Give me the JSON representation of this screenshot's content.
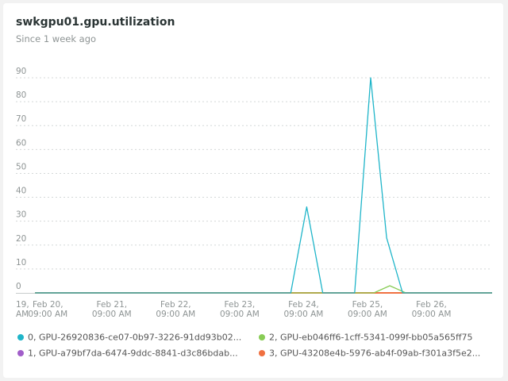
{
  "widget": {
    "title": "swkgpu01.gpu.utilization",
    "subtitle": "Since 1 week ago"
  },
  "chart_data": {
    "type": "line",
    "yticks": [
      0,
      10,
      20,
      30,
      40,
      50,
      60,
      70,
      80,
      90
    ],
    "ylim": [
      0,
      90
    ],
    "xlim": [
      -0.5,
      6.95
    ],
    "xticks": [
      {
        "x": -0.5,
        "line1": "19,",
        "line2": "AM"
      },
      {
        "x": 0,
        "line1": "Feb 20,",
        "line2": "09:00 AM"
      },
      {
        "x": 1,
        "line1": "Feb 21,",
        "line2": "09:00 AM"
      },
      {
        "x": 2,
        "line1": "Feb 22,",
        "line2": "09:00 AM"
      },
      {
        "x": 3,
        "line1": "Feb 23,",
        "line2": "09:00 AM"
      },
      {
        "x": 4,
        "line1": "Feb 24,",
        "line2": "09:00 AM"
      },
      {
        "x": 5,
        "line1": "Feb 25,",
        "line2": "09:00 AM"
      },
      {
        "x": 6,
        "line1": "Feb 26,",
        "line2": "09:00 AM"
      }
    ],
    "grid": "horizontal-dotted",
    "legend_position": "bottom",
    "series": [
      {
        "name": "0, GPU-26920836-ce07-0b97-3226-91dd93b02...",
        "color": "#1fb5c9",
        "points": [
          [
            -0.2,
            0
          ],
          [
            3.8,
            0
          ],
          [
            4.05,
            36
          ],
          [
            4.3,
            0
          ],
          [
            4.8,
            0
          ],
          [
            5.05,
            90
          ],
          [
            5.3,
            23
          ],
          [
            5.55,
            0
          ],
          [
            6.95,
            0
          ]
        ]
      },
      {
        "name": "1, GPU-a79bf7da-6474-9ddc-8841-d3c86bdab...",
        "color": "#a15ec9",
        "points": [
          [
            -0.2,
            0
          ],
          [
            6.95,
            0
          ]
        ]
      },
      {
        "name": "2, GPU-eb046ff6-1cff-5341-099f-bb05a565ff75",
        "color": "#88cc55",
        "points": [
          [
            -0.2,
            0
          ],
          [
            5.1,
            0
          ],
          [
            5.35,
            3
          ],
          [
            5.6,
            0
          ],
          [
            6.95,
            0
          ]
        ]
      },
      {
        "name": "3, GPU-43208e4b-5976-ab4f-09ab-f301a3f5e2...",
        "color": "#f07040",
        "points": [
          [
            -0.2,
            0
          ],
          [
            6.95,
            0
          ]
        ]
      }
    ]
  }
}
